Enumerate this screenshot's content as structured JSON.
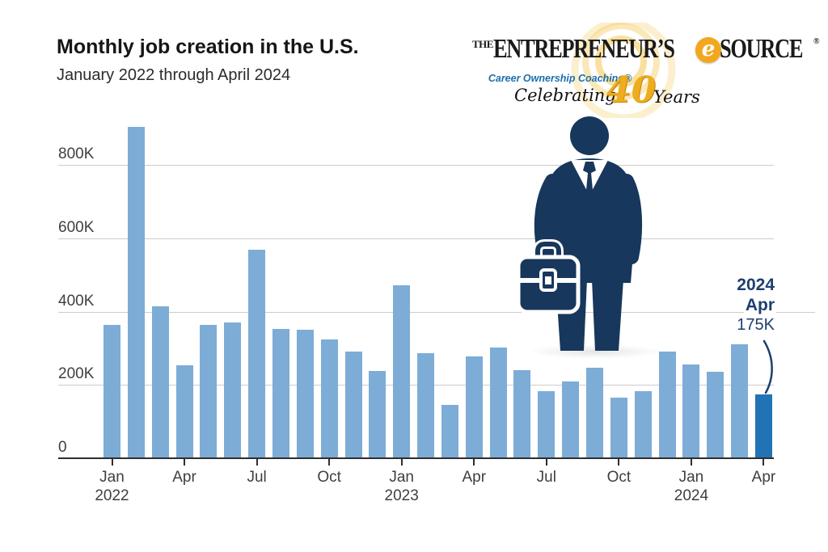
{
  "header": {
    "title": "Monthly job creation in the U.S.",
    "subtitle": "January 2022 through April 2024"
  },
  "logo": {
    "the": "THE",
    "word1": "ENTREPRENEUR’S",
    "e": "e",
    "word2": "SOURCE",
    "registered": "®",
    "tagline": "Career Ownership Coaching®",
    "celebrating": "Celebrating",
    "forty": "40",
    "years": "Years",
    "colors": {
      "gold": "#eead1e",
      "ring": "#f6c64f",
      "tagline_blue": "#1c6fad"
    }
  },
  "annotation": {
    "year": "2024",
    "month": "Apr",
    "value": "175K",
    "color": "#1d3e70"
  },
  "figure": {
    "name": "businessman-with-briefcase",
    "color": "#17375c"
  },
  "chart_data": {
    "type": "bar",
    "title": "Monthly job creation in the U.S.",
    "subtitle": "January 2022 through April 2024",
    "categories": [
      "Jan 2022",
      "Feb 2022",
      "Mar 2022",
      "Apr 2022",
      "May 2022",
      "Jun 2022",
      "Jul 2022",
      "Aug 2022",
      "Sep 2022",
      "Oct 2022",
      "Nov 2022",
      "Dec 2022",
      "Jan 2023",
      "Feb 2023",
      "Mar 2023",
      "Apr 2023",
      "May 2023",
      "Jun 2023",
      "Jul 2023",
      "Aug 2023",
      "Sep 2023",
      "Oct 2023",
      "Nov 2023",
      "Dec 2023",
      "Jan 2024",
      "Feb 2024",
      "Mar 2024",
      "Apr 2024"
    ],
    "values": [
      364,
      904,
      414,
      254,
      364,
      370,
      568,
      352,
      350,
      324,
      290,
      239,
      472,
      287,
      146,
      278,
      303,
      240,
      184,
      210,
      246,
      165,
      182,
      290,
      256,
      236,
      310,
      175
    ],
    "value_unit": "K",
    "ylim": [
      0,
      950
    ],
    "yticks": [
      {
        "value": 0,
        "label": "0"
      },
      {
        "value": 200,
        "label": "200K"
      },
      {
        "value": 400,
        "label": "400K"
      },
      {
        "value": 600,
        "label": "600K"
      },
      {
        "value": 800,
        "label": "800K"
      }
    ],
    "xticks": [
      {
        "index": 0,
        "label": "Jan",
        "year": "2022"
      },
      {
        "index": 3,
        "label": "Apr"
      },
      {
        "index": 6,
        "label": "Jul"
      },
      {
        "index": 9,
        "label": "Oct"
      },
      {
        "index": 12,
        "label": "Jan",
        "year": "2023"
      },
      {
        "index": 15,
        "label": "Apr"
      },
      {
        "index": 18,
        "label": "Jul"
      },
      {
        "index": 21,
        "label": "Oct"
      },
      {
        "index": 24,
        "label": "Jan",
        "year": "2024"
      },
      {
        "index": 27,
        "label": "Apr"
      }
    ],
    "bar_color": "#7dacd7",
    "highlight_color": "#2273b5",
    "highlight_index": 27,
    "grid": true,
    "gridline_color": "#cccccc",
    "legend": "none",
    "annotation": {
      "target": "Apr 2024",
      "text": "2024 Apr 175K"
    }
  }
}
